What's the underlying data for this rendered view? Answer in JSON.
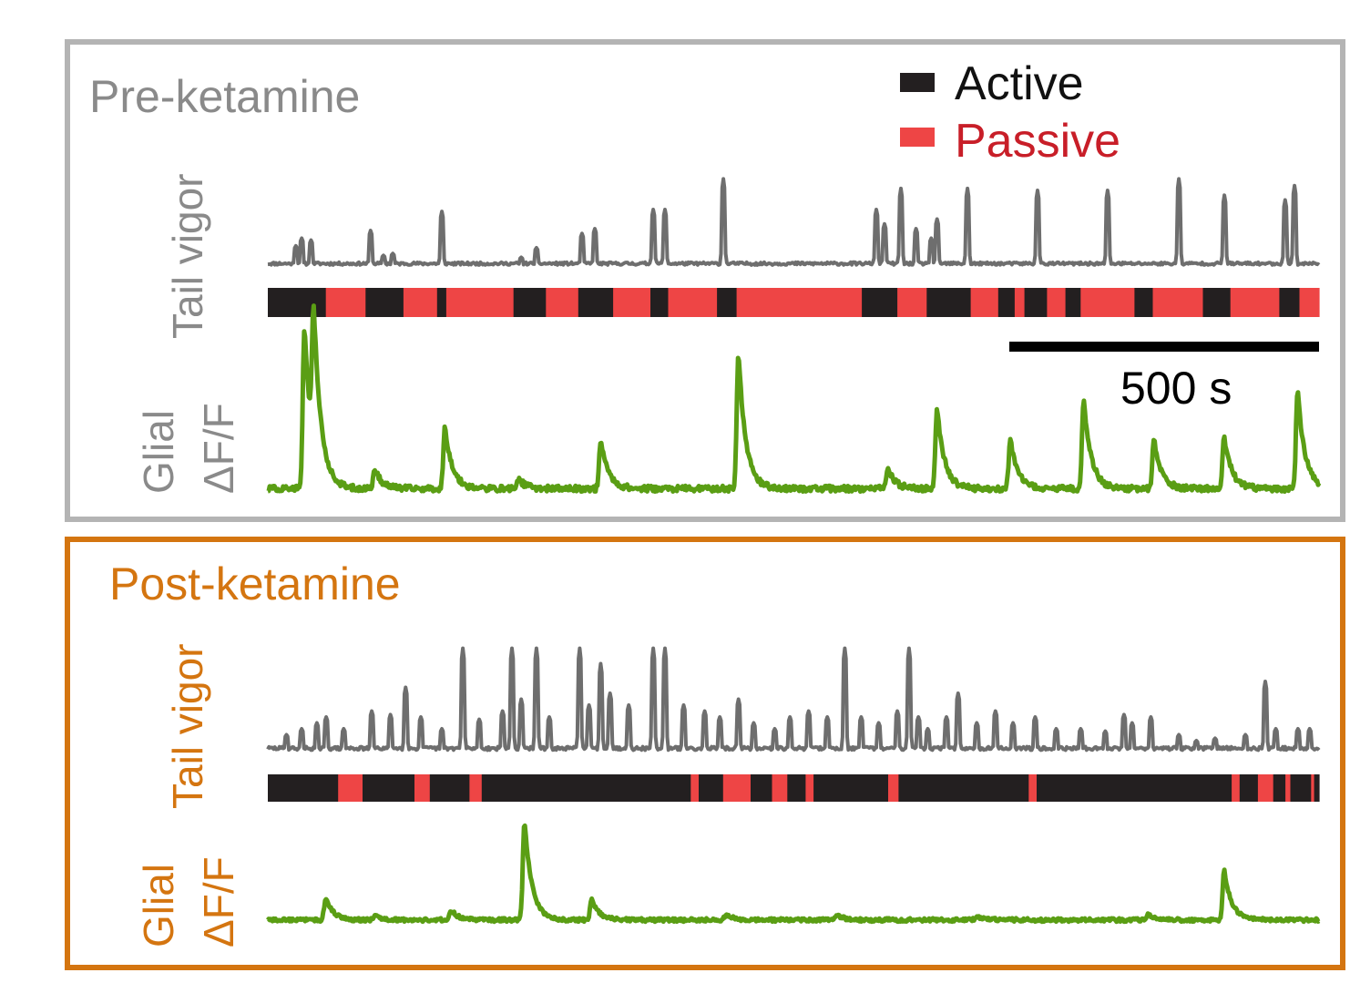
{
  "legend": {
    "active": {
      "label": "Active",
      "color": "#231f20"
    },
    "passive": {
      "label": "Passive",
      "color": "#ee4545"
    }
  },
  "scale_bar": {
    "label": "500 s",
    "seconds": 500
  },
  "colors": {
    "vigor": "#6e6e6e",
    "glial": "#5a9e14",
    "pre_frame": "#b4b4b4",
    "pre_title": "#8a8a8a",
    "post_frame": "#d47510",
    "post_title": "#d47510"
  },
  "chart_data": [
    {
      "type": "line",
      "panel": "pre",
      "title": "Pre-ketamine",
      "duration_s": 1720,
      "tail_vigor_label": "Tail vigor",
      "glial_label_line1": "Glial",
      "glial_label_line2": "ΔF/F",
      "tail_vigor_events": [
        [
          45,
          0.22
        ],
        [
          55,
          0.3
        ],
        [
          70,
          0.28
        ],
        [
          168,
          0.38
        ],
        [
          190,
          0.12
        ],
        [
          205,
          0.14
        ],
        [
          285,
          0.58
        ],
        [
          415,
          0.1
        ],
        [
          440,
          0.2
        ],
        [
          515,
          0.35
        ],
        [
          535,
          0.4
        ],
        [
          630,
          0.6
        ],
        [
          650,
          0.6
        ],
        [
          745,
          0.92
        ],
        [
          995,
          0.6
        ],
        [
          1010,
          0.45
        ],
        [
          1035,
          0.82
        ],
        [
          1060,
          0.4
        ],
        [
          1085,
          0.3
        ],
        [
          1095,
          0.5
        ],
        [
          1145,
          0.82
        ],
        [
          1260,
          0.8
        ],
        [
          1375,
          0.8
        ],
        [
          1490,
          0.92
        ],
        [
          1565,
          0.75
        ],
        [
          1665,
          0.7
        ],
        [
          1680,
          0.85
        ]
      ],
      "behavior_segments": [
        {
          "state": "active",
          "start": 0,
          "end": 95
        },
        {
          "state": "passive",
          "start": 95,
          "end": 160
        },
        {
          "state": "active",
          "start": 160,
          "end": 222
        },
        {
          "state": "passive",
          "start": 222,
          "end": 277
        },
        {
          "state": "active",
          "start": 277,
          "end": 292
        },
        {
          "state": "passive",
          "start": 292,
          "end": 402
        },
        {
          "state": "active",
          "start": 402,
          "end": 455
        },
        {
          "state": "passive",
          "start": 455,
          "end": 508
        },
        {
          "state": "active",
          "start": 508,
          "end": 565
        },
        {
          "state": "passive",
          "start": 565,
          "end": 626
        },
        {
          "state": "active",
          "start": 626,
          "end": 655
        },
        {
          "state": "passive",
          "start": 655,
          "end": 735
        },
        {
          "state": "active",
          "start": 735,
          "end": 767
        },
        {
          "state": "passive",
          "start": 767,
          "end": 972
        },
        {
          "state": "active",
          "start": 972,
          "end": 1030
        },
        {
          "state": "passive",
          "start": 1030,
          "end": 1078
        },
        {
          "state": "active",
          "start": 1078,
          "end": 1150
        },
        {
          "state": "passive",
          "start": 1150,
          "end": 1195
        },
        {
          "state": "active",
          "start": 1195,
          "end": 1222
        },
        {
          "state": "passive",
          "start": 1222,
          "end": 1238
        },
        {
          "state": "active",
          "start": 1238,
          "end": 1275
        },
        {
          "state": "passive",
          "start": 1275,
          "end": 1305
        },
        {
          "state": "active",
          "start": 1305,
          "end": 1330
        },
        {
          "state": "passive",
          "start": 1330,
          "end": 1418
        },
        {
          "state": "active",
          "start": 1418,
          "end": 1448
        },
        {
          "state": "passive",
          "start": 1448,
          "end": 1530
        },
        {
          "state": "active",
          "start": 1530,
          "end": 1575
        },
        {
          "state": "passive",
          "start": 1575,
          "end": 1655
        },
        {
          "state": "active",
          "start": 1655,
          "end": 1688
        },
        {
          "state": "passive",
          "start": 1688,
          "end": 1720
        }
      ],
      "glial_dff_peaks": [
        [
          60,
          1.0
        ],
        [
          75,
          0.85
        ],
        [
          175,
          0.12
        ],
        [
          290,
          0.38
        ],
        [
          410,
          0.06
        ],
        [
          545,
          0.3
        ],
        [
          770,
          0.84
        ],
        [
          1015,
          0.12
        ],
        [
          1095,
          0.5
        ],
        [
          1215,
          0.3
        ],
        [
          1335,
          0.56
        ],
        [
          1450,
          0.3
        ],
        [
          1565,
          0.32
        ],
        [
          1685,
          0.6
        ]
      ]
    },
    {
      "type": "line",
      "panel": "post",
      "title": "Post-ketamine",
      "duration_s": 1720,
      "tail_vigor_label": "Tail vigor",
      "glial_label_line1": "Glial",
      "glial_label_line2": "ΔF/F",
      "tail_vigor_events": [
        [
          30,
          0.15
        ],
        [
          55,
          0.2
        ],
        [
          80,
          0.25
        ],
        [
          95,
          0.3
        ],
        [
          125,
          0.2
        ],
        [
          170,
          0.35
        ],
        [
          200,
          0.32
        ],
        [
          225,
          0.55
        ],
        [
          250,
          0.3
        ],
        [
          285,
          0.2
        ],
        [
          320,
          0.88
        ],
        [
          345,
          0.28
        ],
        [
          385,
          0.35
        ],
        [
          400,
          0.45
        ],
        [
          400,
          0.88
        ],
        [
          415,
          0.45
        ],
        [
          440,
          0.88
        ],
        [
          460,
          0.3
        ],
        [
          510,
          0.88
        ],
        [
          525,
          0.4
        ],
        [
          545,
          0.75
        ],
        [
          560,
          0.5
        ],
        [
          590,
          0.4
        ],
        [
          630,
          0.88
        ],
        [
          650,
          0.88
        ],
        [
          680,
          0.4
        ],
        [
          715,
          0.35
        ],
        [
          740,
          0.3
        ],
        [
          770,
          0.45
        ],
        [
          795,
          0.25
        ],
        [
          830,
          0.2
        ],
        [
          855,
          0.3
        ],
        [
          885,
          0.35
        ],
        [
          915,
          0.3
        ],
        [
          945,
          0.88
        ],
        [
          970,
          0.3
        ],
        [
          1000,
          0.25
        ],
        [
          1030,
          0.35
        ],
        [
          1050,
          0.88
        ],
        [
          1065,
          0.3
        ],
        [
          1080,
          0.2
        ],
        [
          1110,
          0.3
        ],
        [
          1130,
          0.5
        ],
        [
          1160,
          0.25
        ],
        [
          1190,
          0.35
        ],
        [
          1220,
          0.25
        ],
        [
          1255,
          0.3
        ],
        [
          1290,
          0.2
        ],
        [
          1330,
          0.2
        ],
        [
          1370,
          0.18
        ],
        [
          1400,
          0.32
        ],
        [
          1415,
          0.25
        ],
        [
          1445,
          0.3
        ],
        [
          1490,
          0.15
        ],
        [
          1520,
          0.1
        ],
        [
          1550,
          0.12
        ],
        [
          1600,
          0.15
        ],
        [
          1633,
          0.6
        ],
        [
          1650,
          0.2
        ],
        [
          1685,
          0.2
        ],
        [
          1705,
          0.2
        ]
      ],
      "behavior_segments": [
        {
          "state": "active",
          "start": 0,
          "end": 115
        },
        {
          "state": "passive",
          "start": 115,
          "end": 155
        },
        {
          "state": "active",
          "start": 155,
          "end": 240
        },
        {
          "state": "passive",
          "start": 240,
          "end": 265
        },
        {
          "state": "active",
          "start": 265,
          "end": 330
        },
        {
          "state": "passive",
          "start": 330,
          "end": 350
        },
        {
          "state": "active",
          "start": 350,
          "end": 692
        },
        {
          "state": "passive",
          "start": 692,
          "end": 705
        },
        {
          "state": "active",
          "start": 705,
          "end": 745
        },
        {
          "state": "passive",
          "start": 745,
          "end": 790
        },
        {
          "state": "active",
          "start": 790,
          "end": 825
        },
        {
          "state": "passive",
          "start": 825,
          "end": 850
        },
        {
          "state": "active",
          "start": 850,
          "end": 880
        },
        {
          "state": "passive",
          "start": 880,
          "end": 893
        },
        {
          "state": "active",
          "start": 893,
          "end": 1015
        },
        {
          "state": "passive",
          "start": 1015,
          "end": 1032
        },
        {
          "state": "active",
          "start": 1032,
          "end": 1245
        },
        {
          "state": "passive",
          "start": 1245,
          "end": 1258
        },
        {
          "state": "active",
          "start": 1258,
          "end": 1577
        },
        {
          "state": "passive",
          "start": 1577,
          "end": 1590
        },
        {
          "state": "active",
          "start": 1590,
          "end": 1620
        },
        {
          "state": "passive",
          "start": 1620,
          "end": 1645
        },
        {
          "state": "active",
          "start": 1645,
          "end": 1665
        },
        {
          "state": "passive",
          "start": 1665,
          "end": 1673
        },
        {
          "state": "active",
          "start": 1673,
          "end": 1707
        },
        {
          "state": "passive",
          "start": 1707,
          "end": 1712
        },
        {
          "state": "active",
          "start": 1712,
          "end": 1720
        }
      ],
      "glial_dff_peaks": [
        [
          95,
          0.08
        ],
        [
          95,
          0.15
        ],
        [
          175,
          0.05
        ],
        [
          300,
          0.1
        ],
        [
          420,
          1.0
        ],
        [
          530,
          0.2
        ],
        [
          750,
          0.05
        ],
        [
          930,
          0.05
        ],
        [
          1160,
          0.04
        ],
        [
          1440,
          0.06
        ],
        [
          1565,
          0.5
        ]
      ]
    }
  ]
}
